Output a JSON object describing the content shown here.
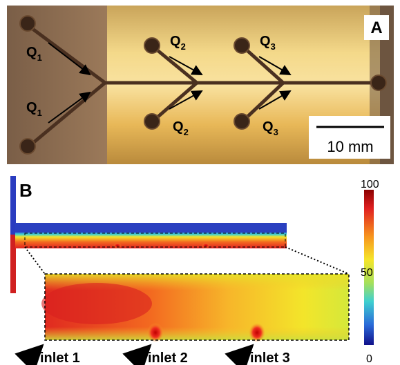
{
  "panel_a": {
    "label": "A",
    "flow_labels": [
      {
        "symbol": "Q",
        "index": "1"
      },
      {
        "symbol": "Q",
        "index": "1"
      },
      {
        "symbol": "Q",
        "index": "2"
      },
      {
        "symbol": "Q",
        "index": "2"
      },
      {
        "symbol": "Q",
        "index": "3"
      },
      {
        "symbol": "Q",
        "index": "3"
      }
    ],
    "scale_bar": "10 mm"
  },
  "panel_b": {
    "label": "B",
    "inlets": [
      "inlet 1",
      "inlet 2",
      "inlet 3"
    ],
    "colorbar_ticks": [
      100,
      50,
      0
    ]
  }
}
